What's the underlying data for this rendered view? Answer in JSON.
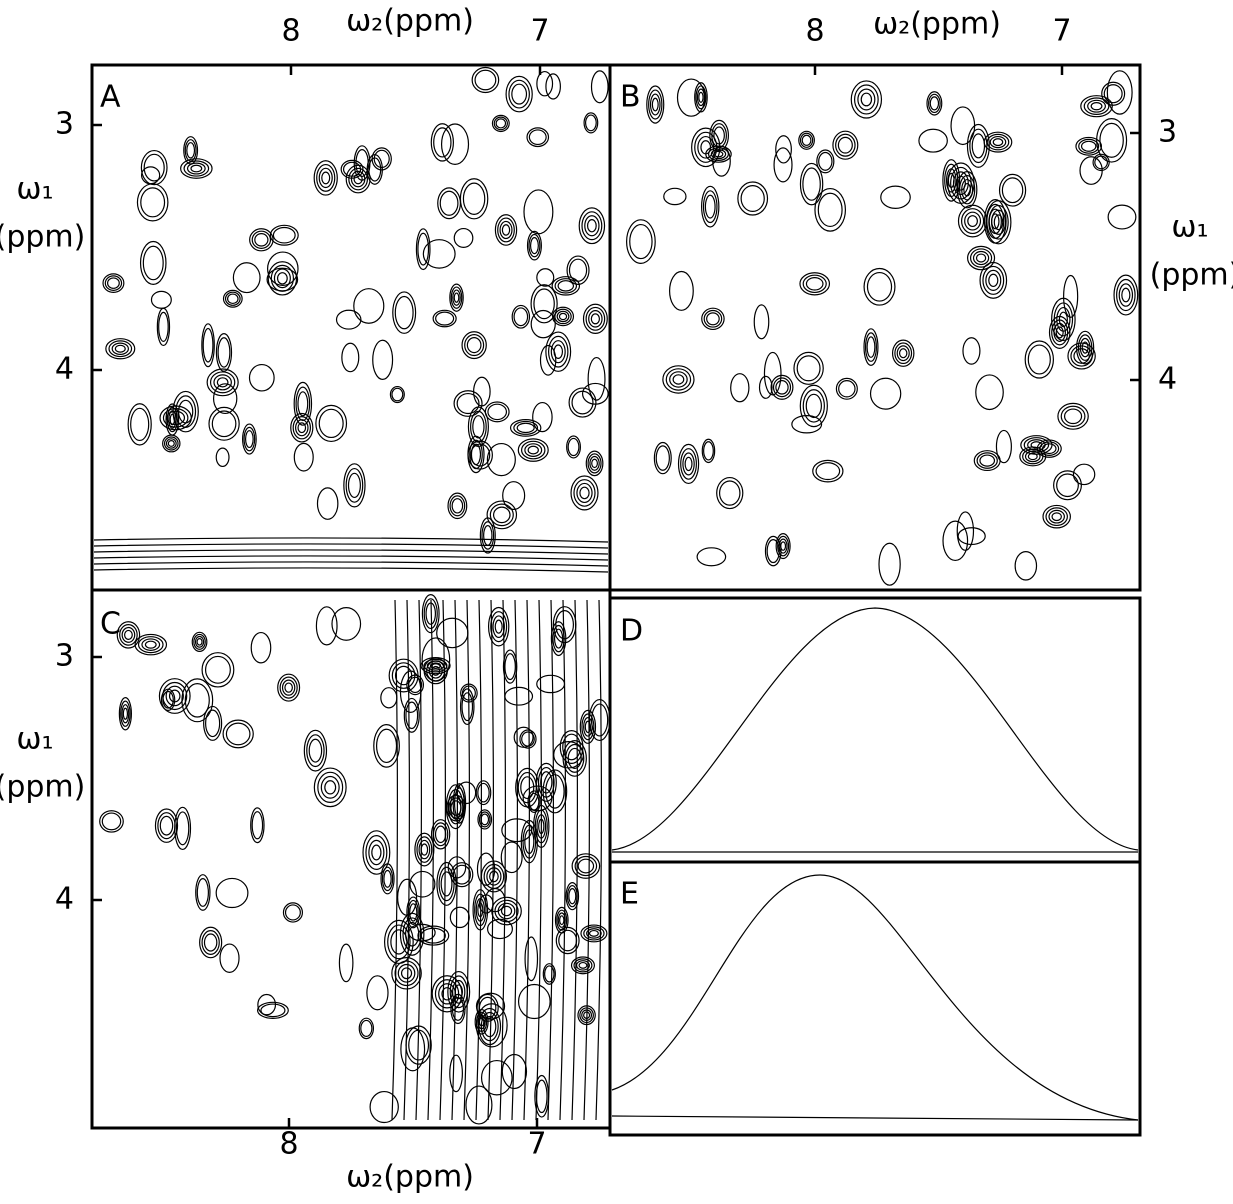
{
  "figure": {
    "panels": [
      {
        "label": "A"
      },
      {
        "label": "B"
      },
      {
        "label": "C"
      },
      {
        "label": "D"
      },
      {
        "label": "E"
      }
    ],
    "axes": {
      "top_a": {
        "title": "ω₂(ppm)",
        "ticks": [
          8,
          7
        ]
      },
      "top_b": {
        "title": "ω₂(ppm)",
        "ticks": [
          8,
          7
        ]
      },
      "bottom_c": {
        "title": "ω₂(ppm)",
        "ticks": [
          8,
          7
        ]
      },
      "left_a": {
        "title": "ω₁",
        "unit": "(ppm)",
        "ticks": [
          3,
          4
        ]
      },
      "right_b": {
        "title": "ω₁",
        "unit": "(ppm)",
        "ticks": [
          3,
          4
        ]
      },
      "left_c": {
        "title": "ω₁",
        "unit": "(ppm)",
        "ticks": [
          3,
          4
        ]
      }
    }
  }
}
